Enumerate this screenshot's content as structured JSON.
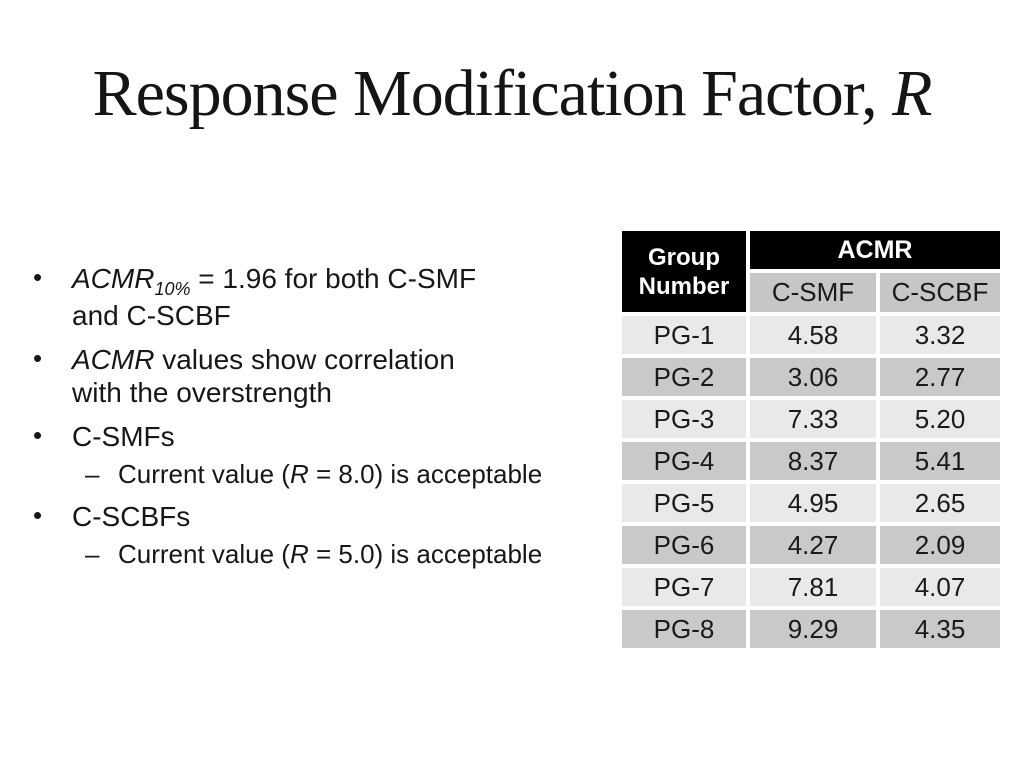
{
  "slide": {
    "title": {
      "main": "Response Modification Factor, ",
      "symbol": "R"
    },
    "bullet_marker": "•",
    "sub_marker": "–",
    "bullets": {
      "b1": {
        "acmr": "ACMR",
        "sub": "10%",
        "rest": " = 1.96 for both C-SMF and C-SCBF"
      },
      "b2": {
        "acmr": "ACMR",
        "rest": " values show correlation with the overstrength"
      },
      "b3": {
        "label": "C-SMFs"
      },
      "b3_sub": {
        "pre": "Current value (",
        "symbol": "R",
        "post": " = 8.0) is acceptable"
      },
      "b4": {
        "label": "C-SCBFs"
      },
      "b4_sub": {
        "pre": "Current value (",
        "symbol": "R",
        "post": " = 5.0) is acceptable"
      }
    }
  },
  "table": {
    "header": {
      "group": "Group Number",
      "acmr": "ACMR",
      "col1": "C-SMF",
      "col2": "C-SCBF"
    },
    "rows": [
      {
        "group": "PG-1",
        "c_smf": "4.58",
        "c_scbf": "3.32"
      },
      {
        "group": "PG-2",
        "c_smf": "3.06",
        "c_scbf": "2.77"
      },
      {
        "group": "PG-3",
        "c_smf": "7.33",
        "c_scbf": "5.20"
      },
      {
        "group": "PG-4",
        "c_smf": "8.37",
        "c_scbf": "5.41"
      },
      {
        "group": "PG-5",
        "c_smf": "4.95",
        "c_scbf": "2.65"
      },
      {
        "group": "PG-6",
        "c_smf": "4.27",
        "c_scbf": "2.09"
      },
      {
        "group": "PG-7",
        "c_smf": "7.81",
        "c_scbf": "4.07"
      },
      {
        "group": "PG-8",
        "c_smf": "9.29",
        "c_scbf": "4.35"
      }
    ],
    "colors": {
      "header_bg": "#000000",
      "header_text": "#ffffff",
      "subheader_bg": "#c6c6c6",
      "row_light": "#e9e9e9",
      "row_dark": "#c9c9c9",
      "text": "#1a1a1a"
    }
  }
}
